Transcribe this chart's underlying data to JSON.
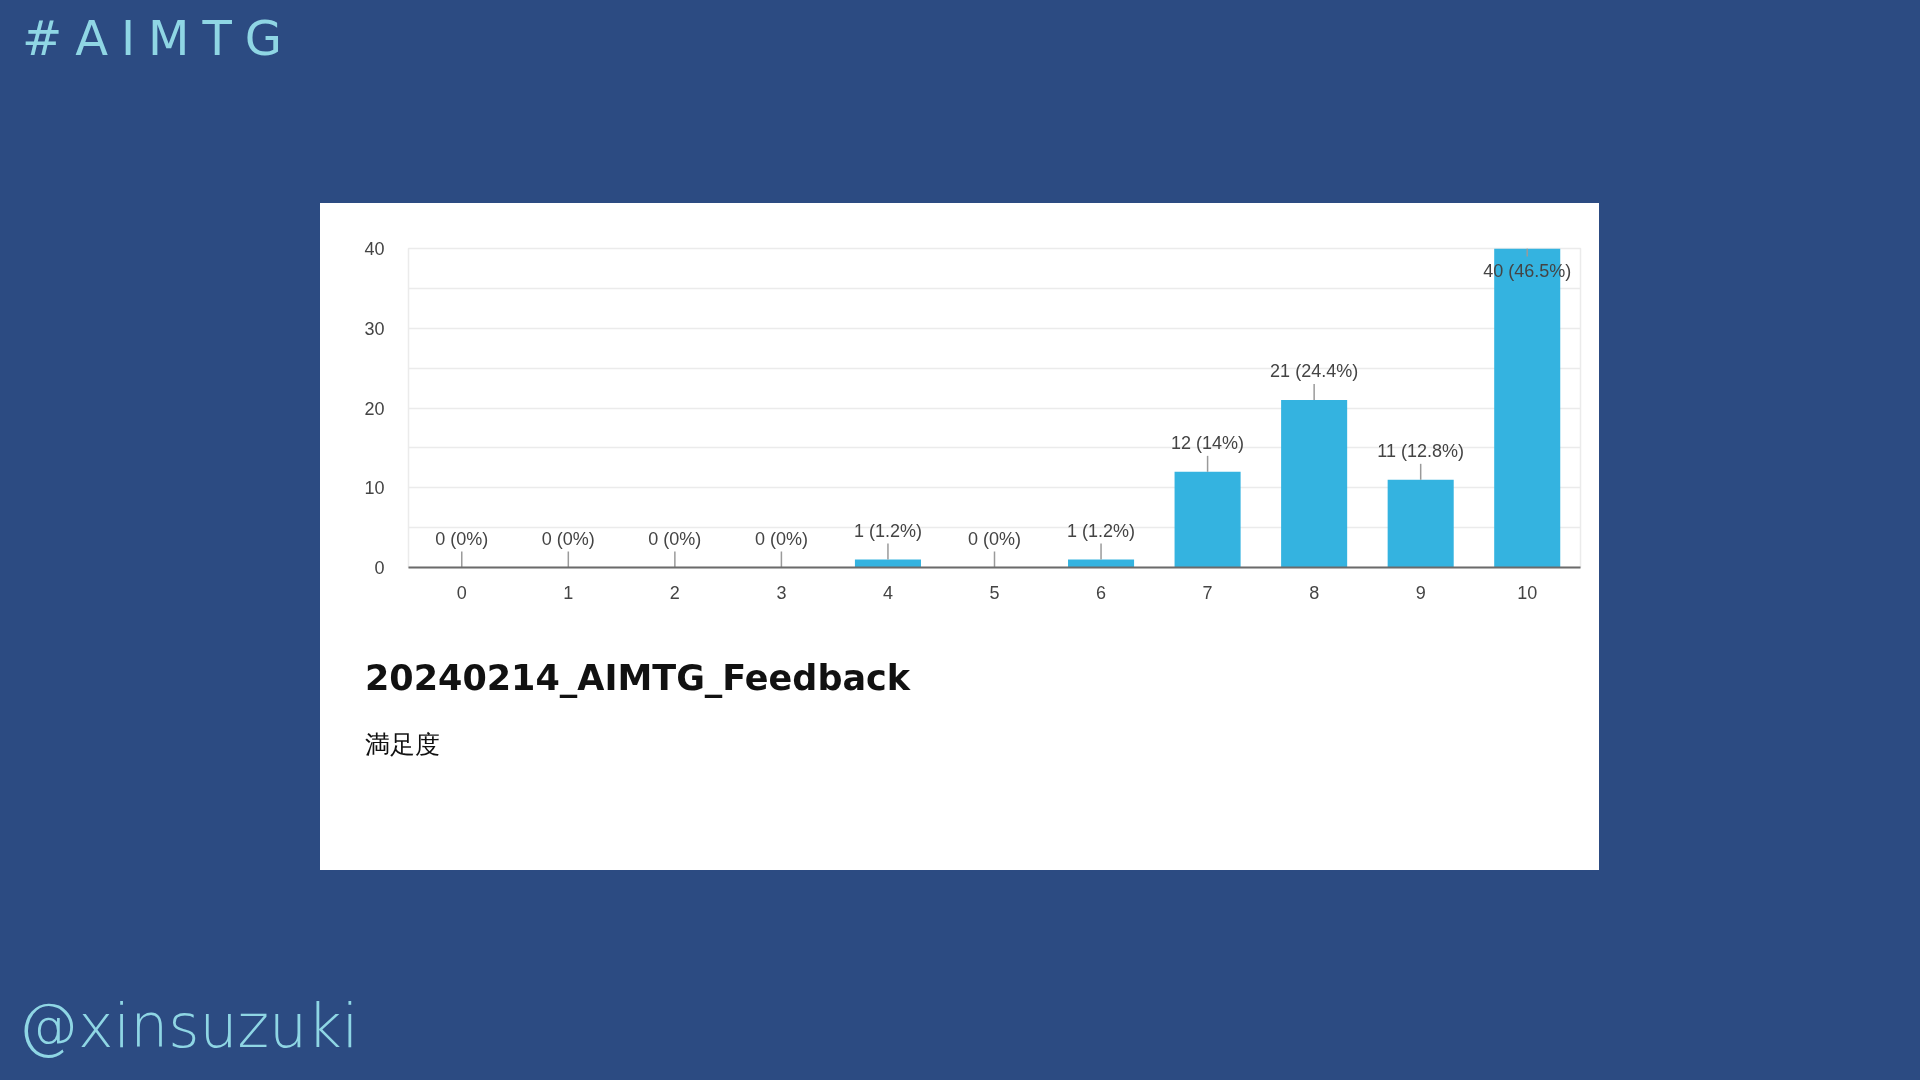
{
  "chart_data": {
    "type": "bar",
    "title": "20240214_AIMTG_Feedback",
    "subtitle": "満足度",
    "annotations": [
      "#AIMTG",
      "@xinsuzuki"
    ],
    "categories": [
      "0",
      "1",
      "2",
      "3",
      "4",
      "5",
      "6",
      "7",
      "8",
      "9",
      "10"
    ],
    "values": [
      0,
      0,
      0,
      0,
      1,
      0,
      1,
      12,
      21,
      11,
      40
    ],
    "color": "#34b3e0",
    "value_labels": [
      "0 (0%)",
      "0 (0%)",
      "0 (0%)",
      "0 (0%)",
      "1 (1.2%)",
      "0 (0%)",
      "1 (1.2%)",
      "12 (14%)",
      "21 (24.4%)",
      "11 (12.8%)",
      "40 (46.5%)"
    ],
    "ylim": [
      0,
      40
    ],
    "yticks": [
      0,
      {
        "value": 5,
        "label": null
      },
      10,
      {
        "value": 15,
        "label": null
      },
      20,
      {
        "value": 25,
        "label": null
      },
      30,
      {
        "value": 35,
        "label": null
      },
      40
    ],
    "grid": "y"
  }
}
